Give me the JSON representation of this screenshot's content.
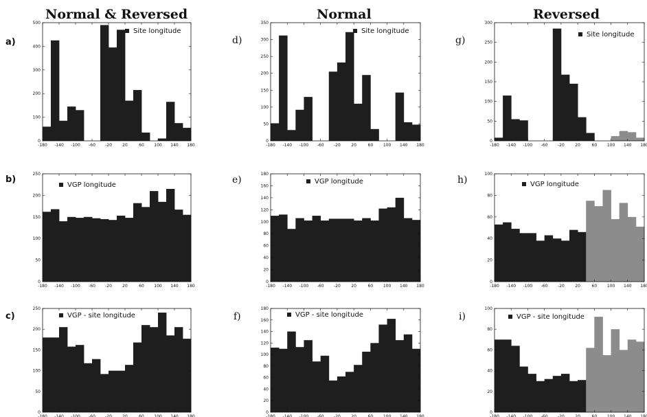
{
  "column_titles": [
    "Normal & Reversed",
    "Normal",
    "Reversed"
  ],
  "colors": {
    "bar": "#1e1e1e",
    "bar_light": "#8c8c8c",
    "axis": "#111111"
  },
  "chart_data": [
    {
      "panel": "a)",
      "type": "bar",
      "legend": "Site longitude",
      "xticks": [
        -180,
        -140,
        -100,
        -60,
        -20,
        20,
        60,
        100,
        140,
        180
      ],
      "ylim": [
        0,
        500
      ],
      "yticks": [
        0,
        100,
        200,
        300,
        400,
        500
      ],
      "series": [
        {
          "name": "Site longitude",
          "values": [
            60,
            425,
            85,
            145,
            130,
            0,
            0,
            490,
            395,
            470,
            170,
            215,
            35,
            0,
            10,
            165,
            75,
            55
          ]
        }
      ]
    },
    {
      "panel": "d)",
      "type": "bar",
      "legend": "Site longitude",
      "xticks": [
        -180,
        -140,
        -100,
        -60,
        -20,
        20,
        60,
        100,
        140,
        180
      ],
      "ylim": [
        0,
        350
      ],
      "yticks": [
        0,
        50,
        100,
        150,
        200,
        250,
        300,
        350
      ],
      "series": [
        {
          "name": "Site longitude",
          "values": [
            52,
            312,
            32,
            92,
            130,
            0,
            0,
            205,
            232,
            322,
            110,
            195,
            35,
            0,
            0,
            143,
            55,
            48
          ]
        }
      ]
    },
    {
      "panel": "g)",
      "type": "bar",
      "legend": "Site longitude",
      "xticks": [
        -180,
        -140,
        -100,
        -60,
        -20,
        20,
        60,
        100,
        140,
        180
      ],
      "ylim": [
        0,
        300
      ],
      "yticks": [
        0,
        50,
        100,
        150,
        200,
        250,
        300
      ],
      "series": [
        {
          "name": "Site longitude",
          "values": [
            8,
            115,
            55,
            52,
            0,
            0,
            0,
            285,
            168,
            145,
            60,
            20,
            0,
            0,
            12,
            25,
            22,
            8
          ]
        }
      ]
    },
    {
      "panel": "b)",
      "type": "bar",
      "legend": "VGP longitude",
      "xticks": [
        -180,
        -140,
        -100,
        -60,
        -20,
        20,
        60,
        100,
        140,
        180
      ],
      "ylim": [
        0,
        250
      ],
      "yticks": [
        0,
        50,
        100,
        150,
        200,
        250
      ],
      "series": [
        {
          "name": "VGP longitude",
          "values": [
            162,
            168,
            140,
            150,
            148,
            150,
            147,
            145,
            143,
            153,
            148,
            182,
            173,
            210,
            185,
            215,
            167,
            155
          ]
        }
      ]
    },
    {
      "panel": "e)",
      "type": "bar",
      "legend": "VGP longitude",
      "xticks": [
        -180,
        -140,
        -100,
        -60,
        -20,
        20,
        60,
        100,
        140,
        180
      ],
      "ylim": [
        0,
        180
      ],
      "yticks": [
        0,
        20,
        40,
        60,
        80,
        100,
        120,
        140,
        160,
        180
      ],
      "series": [
        {
          "name": "VGP longitude",
          "values": [
            110,
            112,
            88,
            106,
            102,
            110,
            102,
            105,
            105,
            105,
            102,
            106,
            102,
            122,
            124,
            140,
            106,
            103
          ]
        }
      ]
    },
    {
      "panel": "h)",
      "type": "bar",
      "legend": "VGP longitude",
      "xticks": [
        -180,
        -140,
        -100,
        -60,
        -20,
        20,
        60,
        100,
        140,
        180
      ],
      "ylim": [
        0,
        100
      ],
      "yticks": [
        0,
        20,
        40,
        60,
        80,
        100
      ],
      "series": [
        {
          "name": "VGP longitude",
          "values": [
            53,
            55,
            49,
            45,
            45,
            38,
            43,
            40,
            38,
            48,
            46,
            75,
            70,
            85,
            58,
            73,
            60,
            51
          ]
        }
      ]
    },
    {
      "panel": "c)",
      "type": "bar",
      "legend": "VGP - site longitude",
      "xticks": [
        -180,
        -140,
        -100,
        -60,
        -20,
        20,
        60,
        100,
        140,
        180
      ],
      "ylim": [
        0,
        250
      ],
      "yticks": [
        0,
        50,
        100,
        150,
        200,
        250
      ],
      "series": [
        {
          "name": "VGP - site longitude",
          "values": [
            180,
            180,
            205,
            158,
            162,
            118,
            128,
            92,
            100,
            100,
            114,
            168,
            210,
            205,
            240,
            185,
            205,
            177
          ]
        }
      ]
    },
    {
      "panel": "f)",
      "type": "bar",
      "legend": "VGP - site longitude",
      "xticks": [
        -180,
        -140,
        -100,
        -60,
        -20,
        20,
        60,
        100,
        140,
        180
      ],
      "ylim": [
        0,
        180
      ],
      "yticks": [
        0,
        20,
        40,
        60,
        80,
        100,
        120,
        140,
        160,
        180
      ],
      "series": [
        {
          "name": "VGP - site longitude",
          "values": [
            112,
            110,
            140,
            113,
            125,
            88,
            98,
            55,
            62,
            70,
            82,
            105,
            120,
            152,
            162,
            125,
            135,
            110
          ]
        }
      ]
    },
    {
      "panel": "i)",
      "type": "bar",
      "legend": "VGP - site longitude",
      "xticks": [
        -180,
        -140,
        -100,
        -60,
        -20,
        20,
        60,
        100,
        140,
        180
      ],
      "ylim": [
        0,
        100
      ],
      "yticks": [
        0,
        20,
        40,
        60,
        80,
        100
      ],
      "series": [
        {
          "name": "VGP - site longitude",
          "values": [
            70,
            70,
            64,
            44,
            37,
            30,
            32,
            35,
            37,
            30,
            31,
            62,
            92,
            55,
            80,
            60,
            70,
            68
          ]
        }
      ]
    }
  ]
}
